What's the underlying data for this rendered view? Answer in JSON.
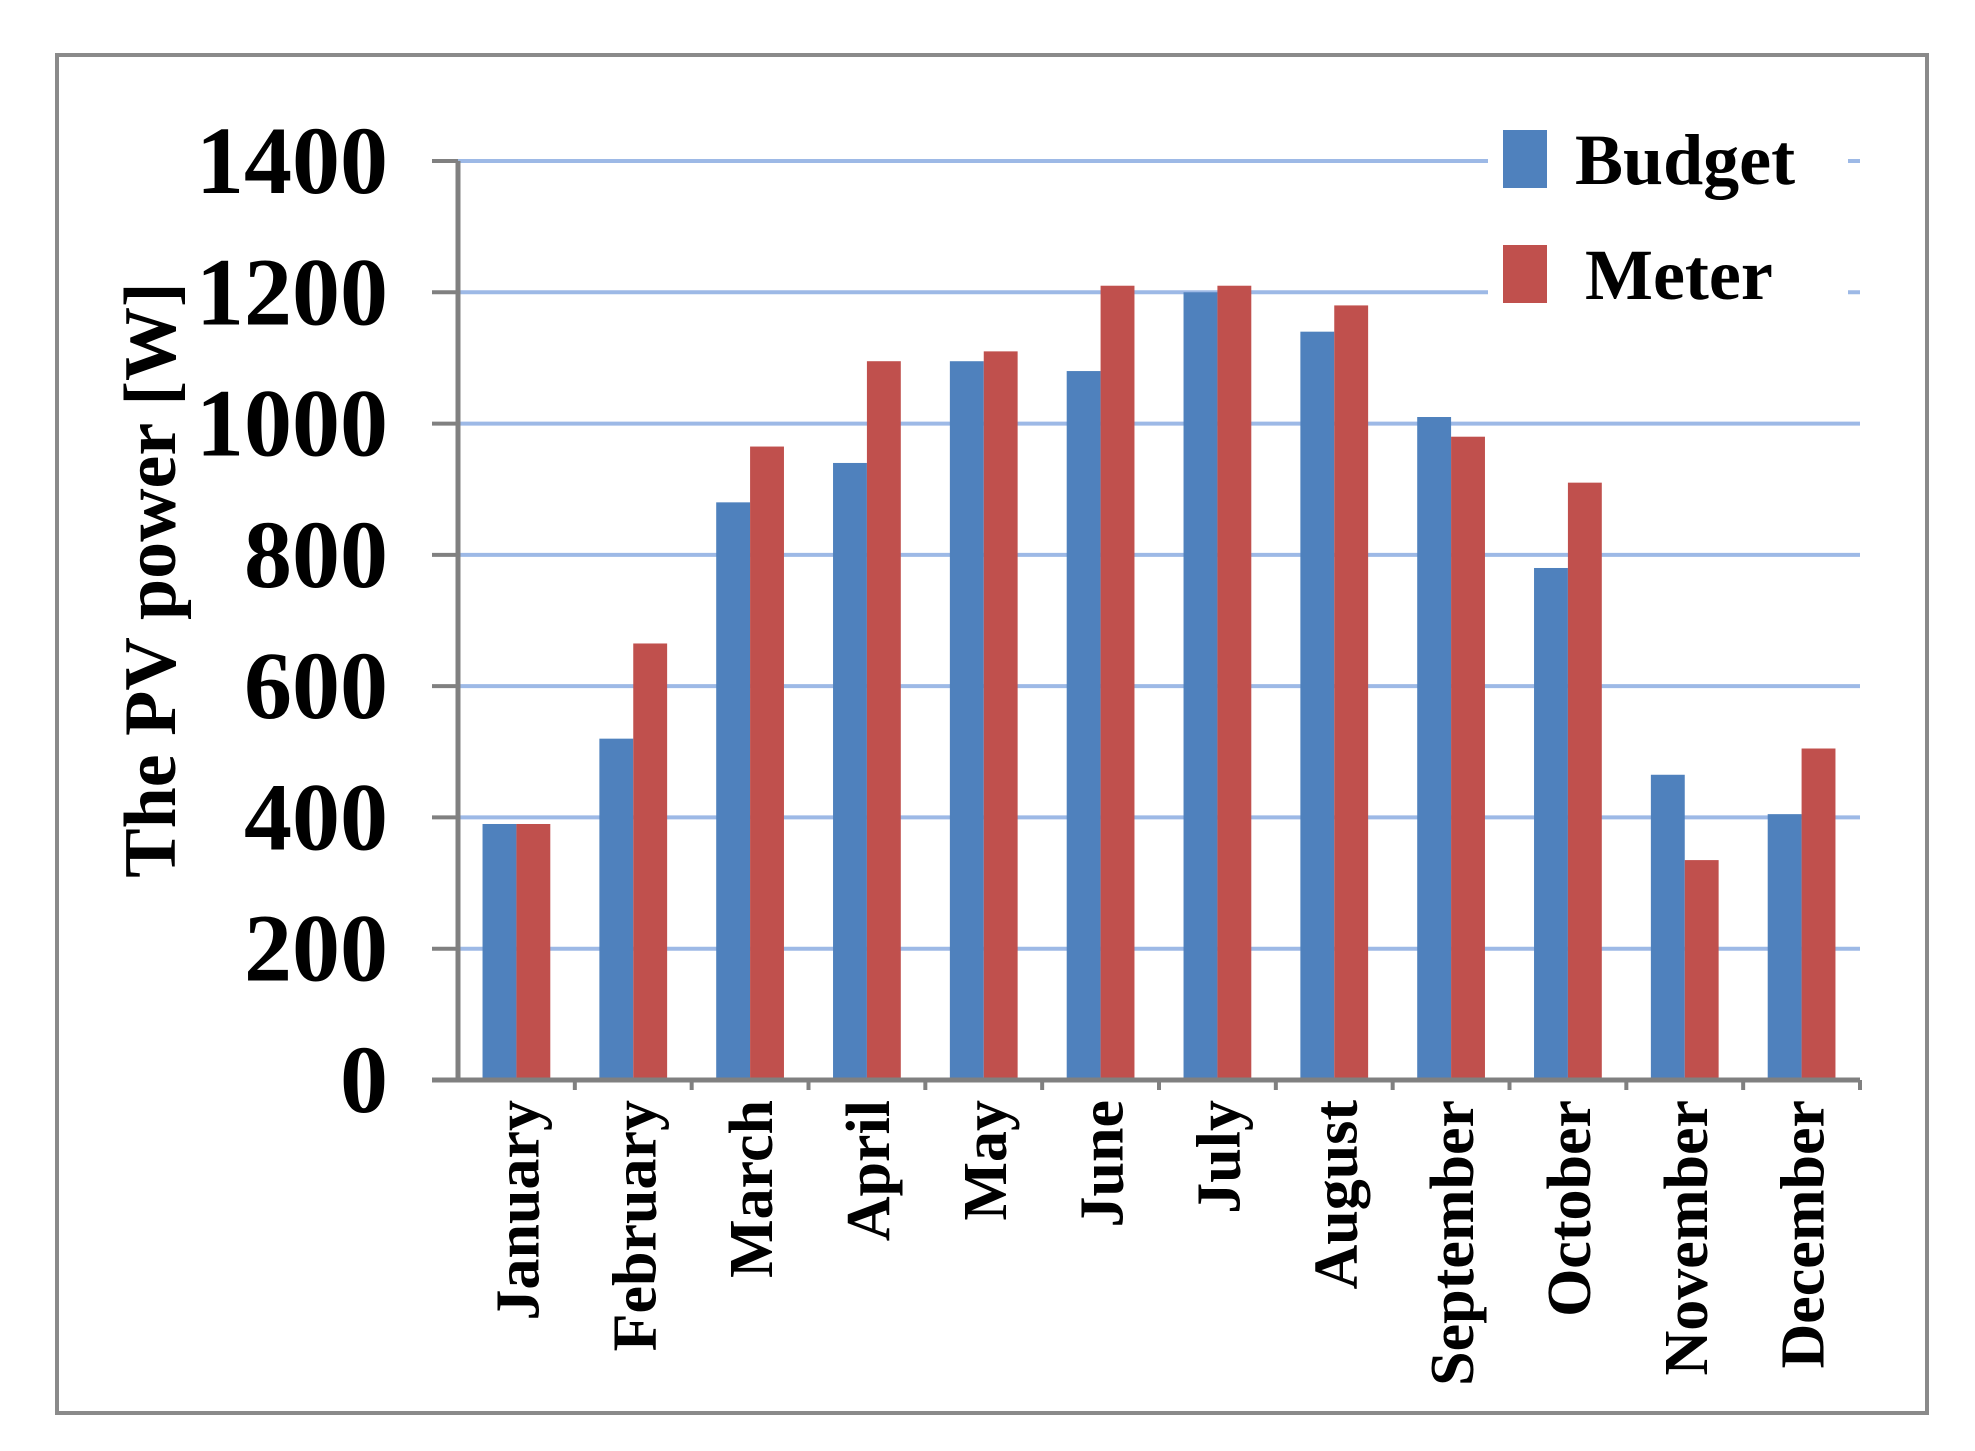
{
  "chart_data": {
    "type": "bar",
    "title": "",
    "ylabel": "The PV power [W]",
    "xlabel": "",
    "ylim": [
      0,
      1400
    ],
    "yticks": [
      0,
      200,
      400,
      600,
      800,
      1000,
      1200,
      1400
    ],
    "grid": true,
    "legend_position": "top-right",
    "categories": [
      "January",
      "February",
      "March",
      "April",
      "May",
      "June",
      "July",
      "August",
      "September",
      "October",
      "November",
      "December"
    ],
    "series": [
      {
        "name": "Budget",
        "color": "#4F81BD",
        "values": [
          390,
          520,
          880,
          940,
          1095,
          1080,
          1200,
          1140,
          1010,
          780,
          465,
          405
        ]
      },
      {
        "name": "Meter",
        "color": "#C0504D",
        "values": [
          390,
          665,
          965,
          1095,
          1110,
          1210,
          1210,
          1180,
          980,
          910,
          335,
          505
        ]
      }
    ],
    "gridline_color": "#9DB9E6",
    "axis_color": "#808080",
    "frame_color": "#888888"
  }
}
